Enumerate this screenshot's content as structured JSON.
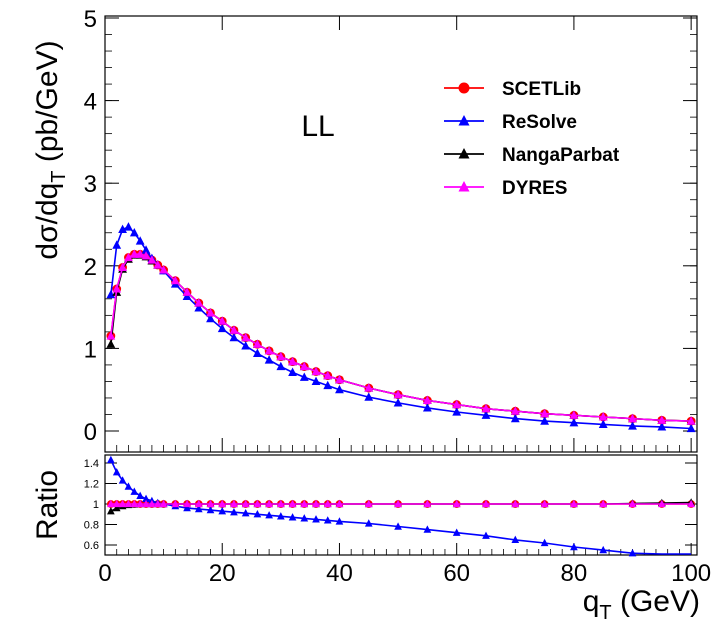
{
  "chart_data": [
    {
      "type": "line",
      "panel": "main",
      "annotation": "LL",
      "xlabel": "q_T (GeV)",
      "ylabel": "dσ/dq_T (pb/GeV)",
      "xlim": [
        0,
        101
      ],
      "ylim": [
        -0.2,
        5
      ],
      "xticks": [
        0,
        20,
        40,
        60,
        80,
        100
      ],
      "yticks": [
        0,
        1,
        2,
        3,
        4,
        5
      ],
      "legend_position": "top-right",
      "series": [
        {
          "name": "SCETLib",
          "color": "#ff0000",
          "marker": "circle",
          "x": [
            1,
            2,
            3,
            4,
            5,
            6,
            7,
            8,
            9,
            10,
            12,
            14,
            16,
            18,
            20,
            22,
            24,
            26,
            28,
            30,
            32,
            34,
            36,
            38,
            40,
            45,
            50,
            55,
            60,
            65,
            70,
            75,
            80,
            85,
            90,
            95,
            100
          ],
          "y": [
            1.15,
            1.72,
            1.98,
            2.1,
            2.14,
            2.14,
            2.12,
            2.07,
            2.01,
            1.95,
            1.82,
            1.68,
            1.55,
            1.43,
            1.33,
            1.22,
            1.13,
            1.05,
            0.97,
            0.9,
            0.84,
            0.78,
            0.72,
            0.67,
            0.62,
            0.52,
            0.44,
            0.37,
            0.32,
            0.27,
            0.24,
            0.21,
            0.19,
            0.17,
            0.15,
            0.13,
            0.12
          ]
        },
        {
          "name": "ReSolve",
          "color": "#0000ff",
          "marker": "triangle",
          "x": [
            1,
            2,
            3,
            4,
            5,
            6,
            7,
            8,
            9,
            10,
            12,
            14,
            16,
            18,
            20,
            22,
            24,
            26,
            28,
            30,
            32,
            34,
            36,
            38,
            40,
            45,
            50,
            55,
            60,
            65,
            70,
            75,
            80,
            85,
            90,
            95,
            100
          ],
          "y": [
            1.65,
            2.25,
            2.44,
            2.47,
            2.4,
            2.3,
            2.19,
            2.09,
            2.01,
            1.94,
            1.78,
            1.63,
            1.49,
            1.36,
            1.24,
            1.13,
            1.03,
            0.94,
            0.86,
            0.78,
            0.71,
            0.65,
            0.6,
            0.55,
            0.5,
            0.41,
            0.34,
            0.28,
            0.23,
            0.19,
            0.15,
            0.12,
            0.1,
            0.08,
            0.06,
            0.05,
            0.03
          ]
        },
        {
          "name": "NangaParbat",
          "color": "#000000",
          "marker": "triangle",
          "x": [
            1,
            2,
            3,
            4,
            5,
            6,
            7,
            8,
            9,
            10,
            12,
            14,
            16,
            18,
            20,
            22,
            24,
            26,
            28,
            30,
            32,
            34,
            36,
            38,
            40,
            45,
            50,
            55,
            60,
            65,
            70,
            75,
            80,
            85,
            90,
            95,
            100
          ],
          "y": [
            1.05,
            1.68,
            1.96,
            2.08,
            2.13,
            2.13,
            2.11,
            2.06,
            2.01,
            1.95,
            1.82,
            1.68,
            1.55,
            1.43,
            1.33,
            1.22,
            1.13,
            1.05,
            0.97,
            0.9,
            0.84,
            0.78,
            0.72,
            0.67,
            0.62,
            0.52,
            0.44,
            0.37,
            0.32,
            0.27,
            0.24,
            0.21,
            0.19,
            0.17,
            0.15,
            0.13,
            0.12
          ]
        },
        {
          "name": "DYRES",
          "color": "#ff00ff",
          "marker": "triangle",
          "x": [
            1,
            2,
            3,
            4,
            5,
            6,
            7,
            8,
            9,
            10,
            12,
            14,
            16,
            18,
            20,
            22,
            24,
            26,
            28,
            30,
            32,
            34,
            36,
            38,
            40,
            45,
            50,
            55,
            60,
            65,
            70,
            75,
            80,
            85,
            90,
            95,
            100
          ],
          "y": [
            1.15,
            1.72,
            1.98,
            2.1,
            2.14,
            2.14,
            2.12,
            2.07,
            2.01,
            1.95,
            1.82,
            1.68,
            1.55,
            1.43,
            1.33,
            1.22,
            1.13,
            1.05,
            0.97,
            0.9,
            0.84,
            0.78,
            0.72,
            0.67,
            0.62,
            0.52,
            0.44,
            0.37,
            0.32,
            0.27,
            0.24,
            0.21,
            0.19,
            0.17,
            0.15,
            0.13,
            0.12
          ]
        }
      ]
    },
    {
      "type": "line",
      "panel": "ratio",
      "xlabel": "q_T (GeV)",
      "ylabel": "Ratio",
      "xlim": [
        0,
        101
      ],
      "ylim": [
        0.52,
        1.47
      ],
      "xticks": [
        0,
        20,
        40,
        60,
        80,
        100
      ],
      "yticks": [
        0.6,
        0.8,
        1,
        1.2,
        1.4
      ],
      "series": [
        {
          "name": "SCETLib",
          "color": "#ff0000",
          "marker": "circle",
          "x": [
            1,
            2,
            3,
            4,
            5,
            6,
            7,
            8,
            9,
            10,
            12,
            14,
            16,
            18,
            20,
            22,
            24,
            26,
            28,
            30,
            32,
            34,
            36,
            38,
            40,
            45,
            50,
            55,
            60,
            65,
            70,
            75,
            80,
            85,
            90,
            95,
            100
          ],
          "y": [
            1,
            1,
            1,
            1,
            1,
            1,
            1,
            1,
            1,
            1,
            1,
            1,
            1,
            1,
            1,
            1,
            1,
            1,
            1,
            1,
            1,
            1,
            1,
            1,
            1,
            1,
            1,
            1,
            1,
            1,
            1,
            1,
            1,
            1,
            1,
            1,
            1
          ]
        },
        {
          "name": "ReSolve",
          "color": "#0000ff",
          "marker": "triangle",
          "x": [
            1,
            2,
            3,
            4,
            5,
            6,
            7,
            8,
            9,
            10,
            12,
            14,
            16,
            18,
            20,
            22,
            24,
            26,
            28,
            30,
            32,
            34,
            36,
            38,
            40,
            45,
            50,
            55,
            60,
            65,
            70,
            75,
            80,
            85,
            90,
            95,
            100
          ],
          "y": [
            1.43,
            1.31,
            1.23,
            1.17,
            1.12,
            1.08,
            1.05,
            1.03,
            1.01,
            1.0,
            0.98,
            0.96,
            0.95,
            0.94,
            0.93,
            0.92,
            0.91,
            0.9,
            0.89,
            0.88,
            0.87,
            0.86,
            0.85,
            0.84,
            0.83,
            0.81,
            0.78,
            0.75,
            0.72,
            0.69,
            0.65,
            0.62,
            0.58,
            0.55,
            0.52,
            0.48,
            0.44
          ]
        },
        {
          "name": "NangaParbat",
          "color": "#000000",
          "marker": "triangle",
          "x": [
            1,
            2,
            3,
            4,
            5,
            6,
            7,
            8,
            9,
            10,
            12,
            14,
            16,
            18,
            20,
            22,
            24,
            26,
            28,
            30,
            32,
            34,
            36,
            38,
            40,
            45,
            50,
            55,
            60,
            65,
            70,
            75,
            80,
            85,
            90,
            95,
            100
          ],
          "y": [
            0.93,
            0.96,
            0.98,
            0.99,
            0.995,
            1,
            1,
            1,
            1,
            1,
            1,
            1,
            1,
            1,
            1,
            1,
            1,
            1,
            1,
            1,
            1,
            1,
            1,
            1,
            1,
            1,
            1,
            1,
            1,
            1,
            1,
            1,
            1,
            1,
            1.005,
            1.01,
            1.015
          ]
        },
        {
          "name": "DYRES",
          "color": "#ff00ff",
          "marker": "triangle",
          "x": [
            1,
            2,
            3,
            4,
            5,
            6,
            7,
            8,
            9,
            10,
            12,
            14,
            16,
            18,
            20,
            22,
            24,
            26,
            28,
            30,
            32,
            34,
            36,
            38,
            40,
            45,
            50,
            55,
            60,
            65,
            70,
            75,
            80,
            85,
            90,
            95,
            100
          ],
          "y": [
            1,
            1,
            1,
            1,
            1,
            1,
            1,
            1,
            1,
            1,
            1,
            1,
            1,
            1,
            1,
            1,
            1,
            1,
            1,
            1,
            1,
            1,
            1,
            1,
            1,
            1,
            1,
            1,
            1,
            1,
            1,
            1,
            1,
            1,
            1,
            1,
            1
          ]
        }
      ]
    }
  ],
  "labels": {
    "annotation": "LL",
    "y_main_prefix": "dσ/dq",
    "y_main_sub": "T",
    "y_main_suffix": " (pb/GeV)",
    "y_ratio": "Ratio",
    "x_prefix": "q",
    "x_sub": "T",
    "x_suffix": " (GeV)"
  }
}
